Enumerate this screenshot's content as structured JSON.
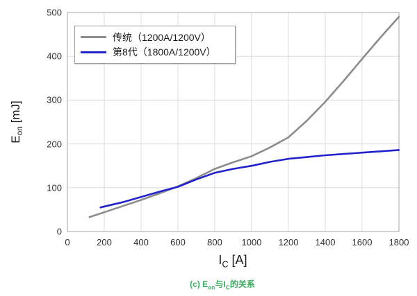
{
  "figure": {
    "ylabel": {
      "prefix": "E",
      "sub": "on",
      "suffix": " [mJ]"
    },
    "xlabel": {
      "prefix": "I",
      "sub": "C",
      "suffix": " [A]"
    },
    "caption": {
      "p1": "(c) E",
      "s1": "on",
      "p2": "与I",
      "s2": "C",
      "p3": "的关系",
      "color": "#3aad5e"
    }
  },
  "chart_data": {
    "type": "line",
    "title": "",
    "xlabel": "I_C [A]",
    "ylabel": "E_on [mJ]",
    "xlim": [
      0,
      1800
    ],
    "ylim": [
      0,
      500
    ],
    "xticks": [
      0,
      200,
      400,
      600,
      800,
      1000,
      1200,
      1400,
      1600,
      1800
    ],
    "yticks": [
      0,
      100,
      200,
      300,
      400,
      500
    ],
    "grid": true,
    "legend_position": "upper left",
    "colors": {
      "grid": "#dcdcdc",
      "frame": "#b5b5b5",
      "caption_green": "#3aad5e"
    },
    "series": [
      {
        "name": "传统（1200A/1200V）",
        "color": "#8c8c8c",
        "x": [
          120,
          200,
          300,
          400,
          500,
          600,
          700,
          800,
          900,
          1000,
          1100,
          1200,
          1300,
          1400,
          1500,
          1600,
          1700,
          1800
        ],
        "y": [
          33,
          44,
          58,
          72,
          87,
          103,
          122,
          143,
          158,
          172,
          192,
          215,
          253,
          296,
          344,
          394,
          443,
          490
        ]
      },
      {
        "name": "第8代（1800A/1200V）",
        "color": "#2222cc",
        "x": [
          180,
          300,
          400,
          500,
          600,
          700,
          800,
          900,
          1000,
          1100,
          1200,
          1300,
          1400,
          1500,
          1600,
          1700,
          1800
        ],
        "y": [
          55,
          67,
          79,
          91,
          102,
          119,
          134,
          143,
          150,
          159,
          166,
          170,
          174,
          177,
          180,
          183,
          186
        ]
      }
    ]
  }
}
